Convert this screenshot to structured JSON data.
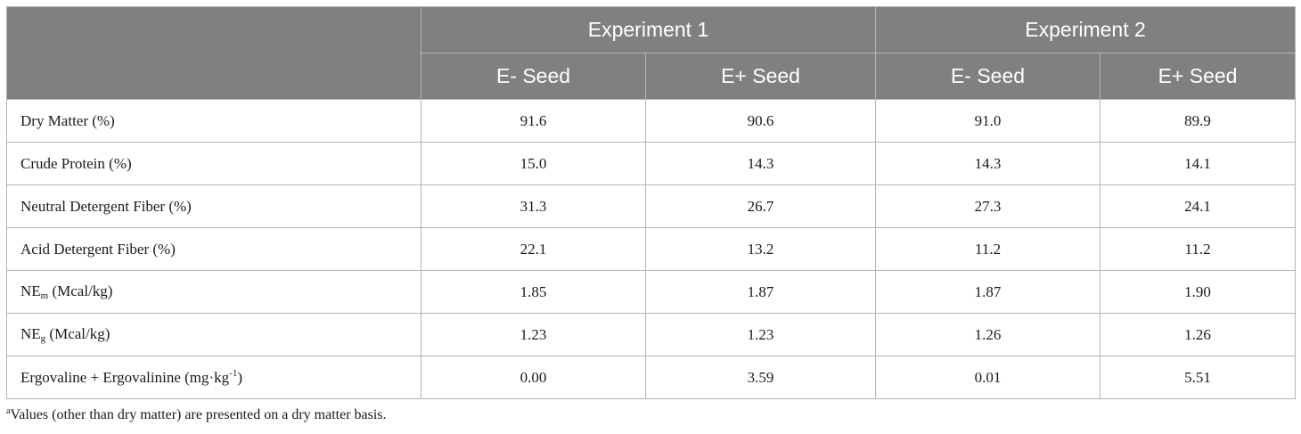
{
  "header": {
    "groups": [
      "Experiment 1",
      "Experiment 2"
    ],
    "subcolumns": [
      "E- Seed",
      "E+ Seed",
      "E- Seed",
      "E+ Seed"
    ]
  },
  "rows": [
    {
      "label": "Dry Matter (%)",
      "values": [
        "91.6",
        "90.6",
        "91.0",
        "89.9"
      ]
    },
    {
      "label": "Crude Protein (%)",
      "values": [
        "15.0",
        "14.3",
        "14.3",
        "14.1"
      ]
    },
    {
      "label": "Neutral Detergent Fiber (%)",
      "values": [
        "31.3",
        "26.7",
        "27.3",
        "24.1"
      ]
    },
    {
      "label": "Acid Detergent Fiber (%)",
      "values": [
        "22.1",
        "13.2",
        "11.2",
        "11.2"
      ]
    },
    {
      "label_base": "NE",
      "label_sub": "m",
      "label_rest": " (Mcal/kg)",
      "values": [
        "1.85",
        "1.87",
        "1.87",
        "1.90"
      ]
    },
    {
      "label_base": "NE",
      "label_sub": "g",
      "label_rest": " (Mcal/kg)",
      "values": [
        "1.23",
        "1.23",
        "1.26",
        "1.26"
      ]
    },
    {
      "label_base": "Ergovaline + Ergovalinine (mg·kg",
      "label_sup": "-1",
      "label_rest": ")",
      "values": [
        "0.00",
        "3.59",
        "0.01",
        "5.51"
      ]
    }
  ],
  "footnote": {
    "marker": "a",
    "text": "Values (other than dry matter) are presented on a dry matter basis."
  }
}
